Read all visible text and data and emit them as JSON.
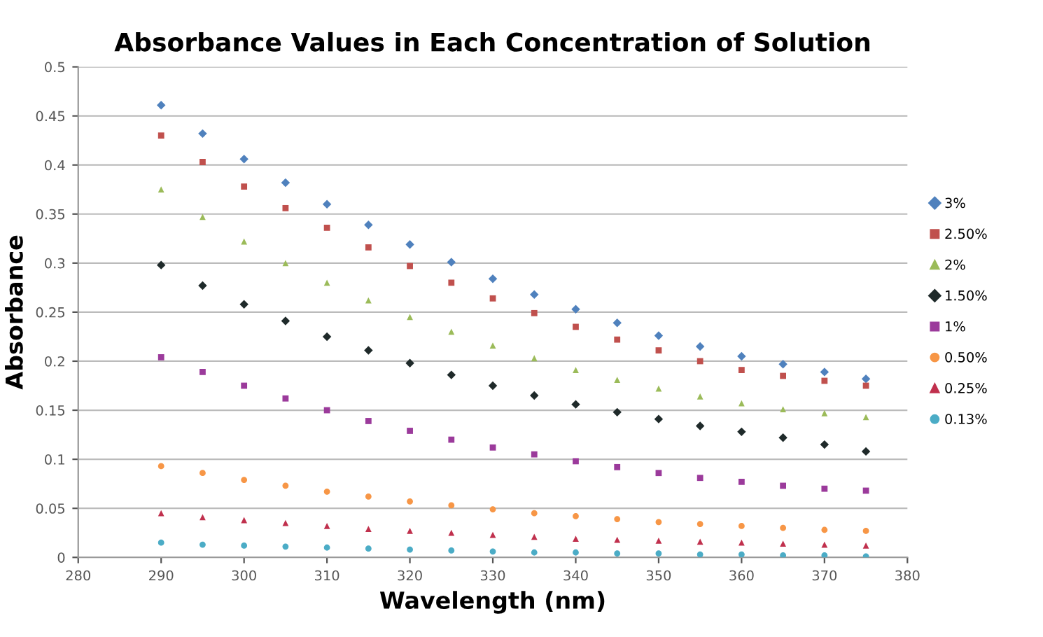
{
  "chart_data": {
    "type": "scatter",
    "title": "Absorbance Values in Each Concentration of Solution",
    "xlabel": "Wavelength (nm)",
    "ylabel": "Absorbance",
    "x": [
      290,
      295,
      300,
      305,
      310,
      315,
      320,
      325,
      330,
      335,
      340,
      345,
      350,
      355,
      360,
      365,
      370,
      375
    ],
    "series": [
      {
        "name": "3%",
        "color": "#4f81bd",
        "marker": "diamond",
        "values": [
          0.461,
          0.432,
          0.406,
          0.382,
          0.36,
          0.339,
          0.319,
          0.301,
          0.284,
          0.268,
          0.253,
          0.239,
          0.226,
          0.215,
          0.205,
          0.197,
          0.189,
          0.182
        ]
      },
      {
        "name": "2.50%",
        "color": "#c0504d",
        "marker": "square",
        "values": [
          0.43,
          0.403,
          0.378,
          0.356,
          0.336,
          0.316,
          0.297,
          0.28,
          0.264,
          0.249,
          0.235,
          0.222,
          0.211,
          0.2,
          0.191,
          0.185,
          0.18,
          0.175
        ]
      },
      {
        "name": "2%",
        "color": "#9bbb59",
        "marker": "triangle",
        "values": [
          0.375,
          0.347,
          0.322,
          0.3,
          0.28,
          0.262,
          0.245,
          0.23,
          0.216,
          0.203,
          0.191,
          0.181,
          0.172,
          0.164,
          0.157,
          0.151,
          0.147,
          0.143
        ]
      },
      {
        "name": "1.50%",
        "color": "#1f2a2a",
        "marker": "diamond",
        "values": [
          0.298,
          0.277,
          0.258,
          0.241,
          0.225,
          0.211,
          0.198,
          0.186,
          0.175,
          0.165,
          0.156,
          0.148,
          0.141,
          0.134,
          0.128,
          0.122,
          0.115,
          0.108
        ]
      },
      {
        "name": "1%",
        "color": "#9b3a9b",
        "marker": "square",
        "values": [
          0.204,
          0.189,
          0.175,
          0.162,
          0.15,
          0.139,
          0.129,
          0.12,
          0.112,
          0.105,
          0.098,
          0.092,
          0.086,
          0.081,
          0.077,
          0.073,
          0.07,
          0.068
        ]
      },
      {
        "name": "0.50%",
        "color": "#f79646",
        "marker": "circle",
        "values": [
          0.093,
          0.086,
          0.079,
          0.073,
          0.067,
          0.062,
          0.057,
          0.053,
          0.049,
          0.045,
          0.042,
          0.039,
          0.036,
          0.034,
          0.032,
          0.03,
          0.028,
          0.027
        ]
      },
      {
        "name": "0.25%",
        "color": "#c0304d",
        "marker": "triangle",
        "values": [
          0.045,
          0.041,
          0.038,
          0.035,
          0.032,
          0.029,
          0.027,
          0.025,
          0.023,
          0.021,
          0.019,
          0.018,
          0.017,
          0.016,
          0.015,
          0.014,
          0.013,
          0.012
        ]
      },
      {
        "name": "0.13%",
        "color": "#4bacc6",
        "marker": "circle",
        "values": [
          0.015,
          0.013,
          0.012,
          0.011,
          0.01,
          0.009,
          0.008,
          0.007,
          0.006,
          0.005,
          0.005,
          0.004,
          0.004,
          0.003,
          0.003,
          0.002,
          0.002,
          0.001
        ]
      }
    ],
    "xlim": [
      280,
      380
    ],
    "xticks": [
      280,
      290,
      300,
      310,
      320,
      330,
      340,
      350,
      360,
      370,
      380
    ],
    "ylim": [
      0,
      0.5
    ],
    "yticks": [
      0,
      0.05,
      0.1,
      0.15,
      0.2,
      0.25,
      0.3,
      0.35,
      0.4,
      0.45,
      0.5
    ],
    "grid": "y",
    "legend": "right"
  }
}
